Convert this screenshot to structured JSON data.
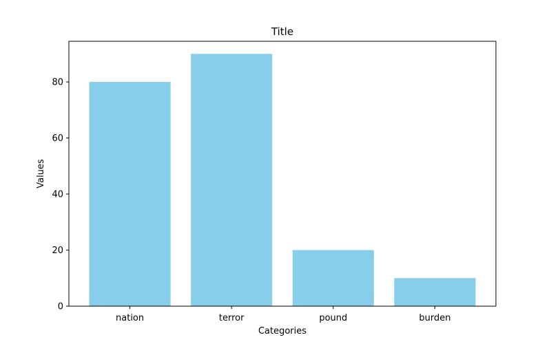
{
  "chart_data": {
    "type": "bar",
    "title": "Title",
    "xlabel": "Categories",
    "ylabel": "Values",
    "categories": [
      "nation",
      "terror",
      "pound",
      "burden"
    ],
    "values": [
      80,
      90,
      20,
      10
    ],
    "ylim": [
      0,
      94.5
    ],
    "yticks": [
      0,
      20,
      40,
      60,
      80
    ],
    "grid": false,
    "bar_color": "#87ceeb",
    "axis_color": "#000000"
  }
}
